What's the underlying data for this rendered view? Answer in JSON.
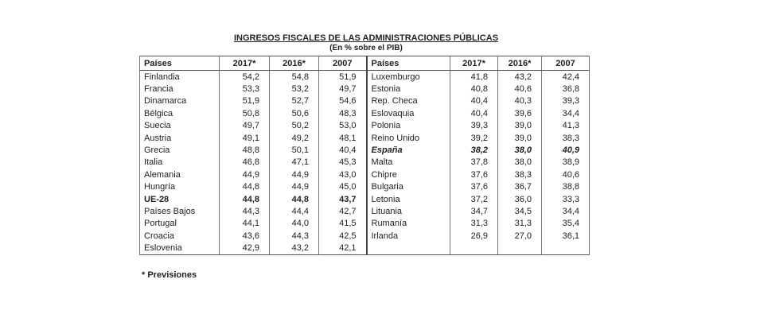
{
  "title": "INGRESOS FISCALES DE LAS ADMINISTRACIONES PÚBLICAS",
  "subtitle": "(En % sobre el PIB)",
  "table": {
    "header": [
      "Países",
      "2017*",
      "2016*",
      "2007",
      "Países",
      "2017*",
      "2016*",
      "2007"
    ],
    "rows": [
      [
        "Finlandia",
        "54,2",
        "54,8",
        "51,9",
        "Luxemburgo",
        "41,8",
        "43,2",
        "42,4"
      ],
      [
        "Francia",
        "53,3",
        "53,2",
        "49,7",
        "Estonia",
        "40,8",
        "40,6",
        "36,8"
      ],
      [
        "Dinamarca",
        "51,9",
        "52,7",
        "54,6",
        "Rep. Checa",
        "40,4",
        "40,3",
        "39,3"
      ],
      [
        "Bélgica",
        "50,8",
        "50,6",
        "48,3",
        "Eslovaquia",
        "40,4",
        "39,6",
        "34,4"
      ],
      [
        "Suecia",
        "49,7",
        "50,2",
        "53,0",
        "Polonia",
        "39,3",
        "39,0",
        "41,3"
      ],
      [
        "Austria",
        "49,1",
        "49,2",
        "48,1",
        "Reino Unido",
        "39,2",
        "39,0",
        "38,3"
      ],
      [
        "Grecia",
        "48,8",
        "50,1",
        "40,4",
        "España",
        "38,2",
        "38,0",
        "40,9"
      ],
      [
        "Italia",
        "46,8",
        "47,1",
        "45,3",
        "Malta",
        "37,8",
        "38,0",
        "38,9"
      ],
      [
        "Alemania",
        "44,9",
        "44,9",
        "43,0",
        "Chipre",
        "37,6",
        "38,3",
        "40,6"
      ],
      [
        "Hungría",
        "44,8",
        "44,9",
        "45,0",
        "Bulgaria",
        "37,6",
        "36,7",
        "38,8"
      ],
      [
        "UE-28",
        "44,8",
        "44,8",
        "43,7",
        "Letonia",
        "37,2",
        "36,0",
        "33,3"
      ],
      [
        "Países Bajos",
        "44,3",
        "44,4",
        "42,7",
        "Lituania",
        "34,7",
        "34,5",
        "34,4"
      ],
      [
        "Portugal",
        "44,1",
        "44,0",
        "41,5",
        "Rumanía",
        "31,3",
        "31,3",
        "35,4"
      ],
      [
        "Croacia",
        "43,6",
        "44,3",
        "42,5",
        "Irlanda",
        "26,9",
        "27,0",
        "36,1"
      ],
      [
        "Eslovenia",
        "42,9",
        "43,2",
        "42,1"
      ]
    ]
  },
  "footnote": "* Previsiones"
}
